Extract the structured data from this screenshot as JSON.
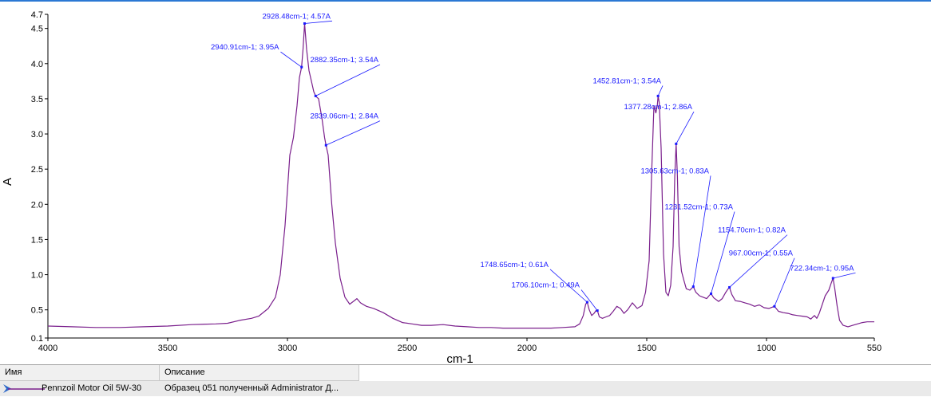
{
  "chart_data": {
    "type": "line",
    "xlabel": "cm-1",
    "ylabel": "A",
    "xlim": [
      4000,
      550
    ],
    "ylim": [
      0.1,
      4.7
    ],
    "x_ticks": [
      "4000",
      "3500",
      "3000",
      "2500",
      "2000",
      "1500",
      "1000",
      "550"
    ],
    "y_ticks": [
      "0.1",
      "0.5",
      "1.0",
      "1.5",
      "2.0",
      "2.5",
      "3.0",
      "3.5",
      "4.0",
      "4.5",
      "4.7"
    ],
    "grid": false,
    "series": [
      {
        "name": "Pennzoil Motor Oil 5W-30",
        "color": "#7a1f8c",
        "points": [
          [
            4000,
            0.27
          ],
          [
            3900,
            0.26
          ],
          [
            3800,
            0.25
          ],
          [
            3700,
            0.25
          ],
          [
            3600,
            0.26
          ],
          [
            3500,
            0.27
          ],
          [
            3400,
            0.29
          ],
          [
            3300,
            0.3
          ],
          [
            3250,
            0.31
          ],
          [
            3200,
            0.35
          ],
          [
            3150,
            0.38
          ],
          [
            3120,
            0.41
          ],
          [
            3080,
            0.52
          ],
          [
            3050,
            0.68
          ],
          [
            3030,
            1.0
          ],
          [
            3010,
            1.7
          ],
          [
            2990,
            2.7
          ],
          [
            2975,
            2.95
          ],
          [
            2960,
            3.4
          ],
          [
            2950,
            3.8
          ],
          [
            2940.91,
            3.95
          ],
          [
            2935,
            4.2
          ],
          [
            2928.48,
            4.57
          ],
          [
            2920,
            4.2
          ],
          [
            2910,
            3.9
          ],
          [
            2900,
            3.75
          ],
          [
            2890,
            3.6
          ],
          [
            2882.35,
            3.54
          ],
          [
            2870,
            3.5
          ],
          [
            2855,
            3.2
          ],
          [
            2845,
            2.95
          ],
          [
            2839.06,
            2.84
          ],
          [
            2830,
            2.7
          ],
          [
            2815,
            2.0
          ],
          [
            2800,
            1.45
          ],
          [
            2780,
            0.95
          ],
          [
            2760,
            0.68
          ],
          [
            2740,
            0.58
          ],
          [
            2725,
            0.62
          ],
          [
            2710,
            0.66
          ],
          [
            2695,
            0.6
          ],
          [
            2670,
            0.55
          ],
          [
            2640,
            0.52
          ],
          [
            2600,
            0.46
          ],
          [
            2560,
            0.38
          ],
          [
            2520,
            0.32
          ],
          [
            2480,
            0.3
          ],
          [
            2440,
            0.28
          ],
          [
            2400,
            0.28
          ],
          [
            2350,
            0.29
          ],
          [
            2300,
            0.27
          ],
          [
            2250,
            0.26
          ],
          [
            2200,
            0.25
          ],
          [
            2150,
            0.25
          ],
          [
            2100,
            0.24
          ],
          [
            2050,
            0.24
          ],
          [
            2000,
            0.24
          ],
          [
            1950,
            0.24
          ],
          [
            1900,
            0.24
          ],
          [
            1850,
            0.25
          ],
          [
            1800,
            0.26
          ],
          [
            1780,
            0.3
          ],
          [
            1765,
            0.42
          ],
          [
            1755,
            0.58
          ],
          [
            1748.65,
            0.61
          ],
          [
            1740,
            0.5
          ],
          [
            1730,
            0.42
          ],
          [
            1720,
            0.45
          ],
          [
            1712,
            0.49
          ],
          [
            1706.1,
            0.49
          ],
          [
            1698,
            0.4
          ],
          [
            1685,
            0.38
          ],
          [
            1670,
            0.4
          ],
          [
            1655,
            0.42
          ],
          [
            1640,
            0.48
          ],
          [
            1625,
            0.55
          ],
          [
            1610,
            0.52
          ],
          [
            1595,
            0.45
          ],
          [
            1580,
            0.5
          ],
          [
            1560,
            0.6
          ],
          [
            1540,
            0.52
          ],
          [
            1520,
            0.56
          ],
          [
            1505,
            0.75
          ],
          [
            1490,
            1.2
          ],
          [
            1480,
            2.4
          ],
          [
            1470,
            3.4
          ],
          [
            1462,
            3.3
          ],
          [
            1456,
            3.4
          ],
          [
            1452.81,
            3.54
          ],
          [
            1448,
            3.45
          ],
          [
            1440,
            2.8
          ],
          [
            1430,
            1.3
          ],
          [
            1420,
            0.75
          ],
          [
            1410,
            0.7
          ],
          [
            1400,
            0.85
          ],
          [
            1390,
            1.4
          ],
          [
            1383,
            2.4
          ],
          [
            1377.28,
            2.86
          ],
          [
            1372,
            2.4
          ],
          [
            1365,
            1.4
          ],
          [
            1355,
            1.05
          ],
          [
            1345,
            0.92
          ],
          [
            1335,
            0.8
          ],
          [
            1320,
            0.78
          ],
          [
            1305.63,
            0.83
          ],
          [
            1295,
            0.75
          ],
          [
            1280,
            0.7
          ],
          [
            1265,
            0.68
          ],
          [
            1250,
            0.66
          ],
          [
            1240,
            0.7
          ],
          [
            1231.52,
            0.73
          ],
          [
            1220,
            0.67
          ],
          [
            1200,
            0.62
          ],
          [
            1185,
            0.66
          ],
          [
            1170,
            0.75
          ],
          [
            1160,
            0.8
          ],
          [
            1154.7,
            0.82
          ],
          [
            1145,
            0.72
          ],
          [
            1130,
            0.63
          ],
          [
            1110,
            0.62
          ],
          [
            1090,
            0.6
          ],
          [
            1070,
            0.58
          ],
          [
            1050,
            0.55
          ],
          [
            1030,
            0.57
          ],
          [
            1010,
            0.53
          ],
          [
            990,
            0.52
          ],
          [
            975,
            0.54
          ],
          [
            967.0,
            0.55
          ],
          [
            950,
            0.48
          ],
          [
            930,
            0.46
          ],
          [
            910,
            0.45
          ],
          [
            890,
            0.43
          ],
          [
            870,
            0.42
          ],
          [
            850,
            0.41
          ],
          [
            830,
            0.4
          ],
          [
            815,
            0.37
          ],
          [
            800,
            0.42
          ],
          [
            790,
            0.38
          ],
          [
            780,
            0.45
          ],
          [
            770,
            0.55
          ],
          [
            755,
            0.7
          ],
          [
            740,
            0.78
          ],
          [
            730,
            0.88
          ],
          [
            722.34,
            0.95
          ],
          [
            715,
            0.8
          ],
          [
            705,
            0.55
          ],
          [
            695,
            0.35
          ],
          [
            680,
            0.28
          ],
          [
            660,
            0.26
          ],
          [
            640,
            0.28
          ],
          [
            620,
            0.3
          ],
          [
            600,
            0.32
          ],
          [
            580,
            0.33
          ],
          [
            560,
            0.33
          ],
          [
            550,
            0.33
          ]
        ]
      }
    ],
    "annotations": [
      {
        "label": "2928.48cm-1; 4.57A",
        "x": 2928.48,
        "y": 4.57,
        "tx": 2820,
        "ty": 4.64,
        "anchor": "end"
      },
      {
        "label": "2940.91cm-1; 3.95A",
        "x": 2940.91,
        "y": 3.95,
        "tx": 3035,
        "ty": 4.2,
        "anchor": "end"
      },
      {
        "label": "2882.35cm-1; 3.54A",
        "x": 2882.35,
        "y": 3.54,
        "tx": 2620,
        "ty": 4.02,
        "anchor": "end"
      },
      {
        "label": "2839.06cm-1; 2.84A",
        "x": 2839.06,
        "y": 2.84,
        "tx": 2620,
        "ty": 3.22,
        "anchor": "end"
      },
      {
        "label": "1452.81cm-1; 3.54A",
        "x": 1452.81,
        "y": 3.54,
        "tx": 1440,
        "ty": 3.72,
        "anchor": "end"
      },
      {
        "label": "1377.28cm-1; 2.86A",
        "x": 1377.28,
        "y": 2.86,
        "tx": 1310,
        "ty": 3.35,
        "anchor": "end"
      },
      {
        "label": "1305.63cm-1; 0.83A",
        "x": 1305.63,
        "y": 0.83,
        "tx": 1240,
        "ty": 2.44,
        "anchor": "end"
      },
      {
        "label": "1231.52cm-1; 0.73A",
        "x": 1231.52,
        "y": 0.73,
        "tx": 1140,
        "ty": 1.93,
        "anchor": "end"
      },
      {
        "label": "1154.70cm-1; 0.82A",
        "x": 1154.7,
        "y": 0.82,
        "tx": 920,
        "ty": 1.6,
        "anchor": "end"
      },
      {
        "label": "967.00cm-1; 0.55A",
        "x": 967.0,
        "y": 0.55,
        "tx": 890,
        "ty": 1.27,
        "anchor": "end"
      },
      {
        "label": "722.34cm-1; 0.95A",
        "x": 722.34,
        "y": 0.95,
        "tx": 635,
        "ty": 1.06,
        "anchor": "end"
      },
      {
        "label": "1748.65cm-1; 0.61A",
        "x": 1748.65,
        "y": 0.61,
        "tx": 1910,
        "ty": 1.11,
        "anchor": "end"
      },
      {
        "label": "1706.10cm-1; 0.49A",
        "x": 1706.1,
        "y": 0.49,
        "tx": 1780,
        "ty": 0.82,
        "anchor": "end"
      }
    ]
  },
  "legend": {
    "col_name": "Имя",
    "col_desc": "Описание",
    "row": {
      "name": "Pennzoil Motor Oil 5W-30",
      "description": "Образец 051 полученный Administrator Д..."
    },
    "line_color": "#7a1f8c"
  }
}
